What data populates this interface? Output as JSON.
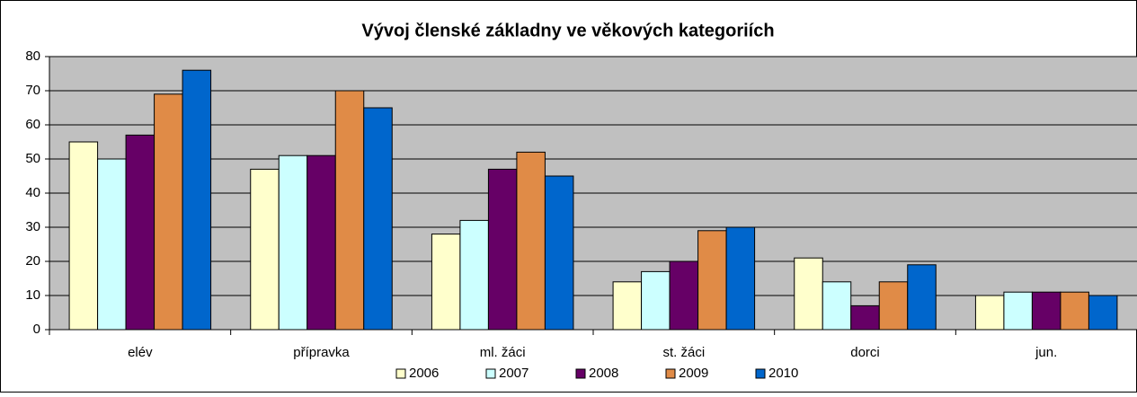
{
  "chart_data": {
    "type": "bar",
    "title": "Vývoj členské základny ve věkových kategoriích",
    "categories": [
      "elév",
      "přípravka",
      "ml. žáci",
      "st. žáci",
      "dorci",
      "jun."
    ],
    "series": [
      {
        "name": "2006",
        "color": "#ffffcc",
        "values": [
          55,
          47,
          28,
          14,
          21,
          10
        ]
      },
      {
        "name": "2007",
        "color": "#ccffff",
        "values": [
          50,
          51,
          32,
          17,
          14,
          11
        ]
      },
      {
        "name": "2008",
        "color": "#660066",
        "values": [
          57,
          51,
          47,
          20,
          7,
          11
        ]
      },
      {
        "name": "2009",
        "color": "#e08b47",
        "values": [
          69,
          70,
          52,
          29,
          14,
          11
        ]
      },
      {
        "name": "2010",
        "color": "#0066cc",
        "values": [
          76,
          65,
          45,
          30,
          19,
          10
        ]
      }
    ],
    "ylim": [
      0,
      80
    ],
    "yticks": [
      0,
      10,
      20,
      30,
      40,
      50,
      60,
      70,
      80
    ],
    "grid": true,
    "legend": "bottom"
  }
}
